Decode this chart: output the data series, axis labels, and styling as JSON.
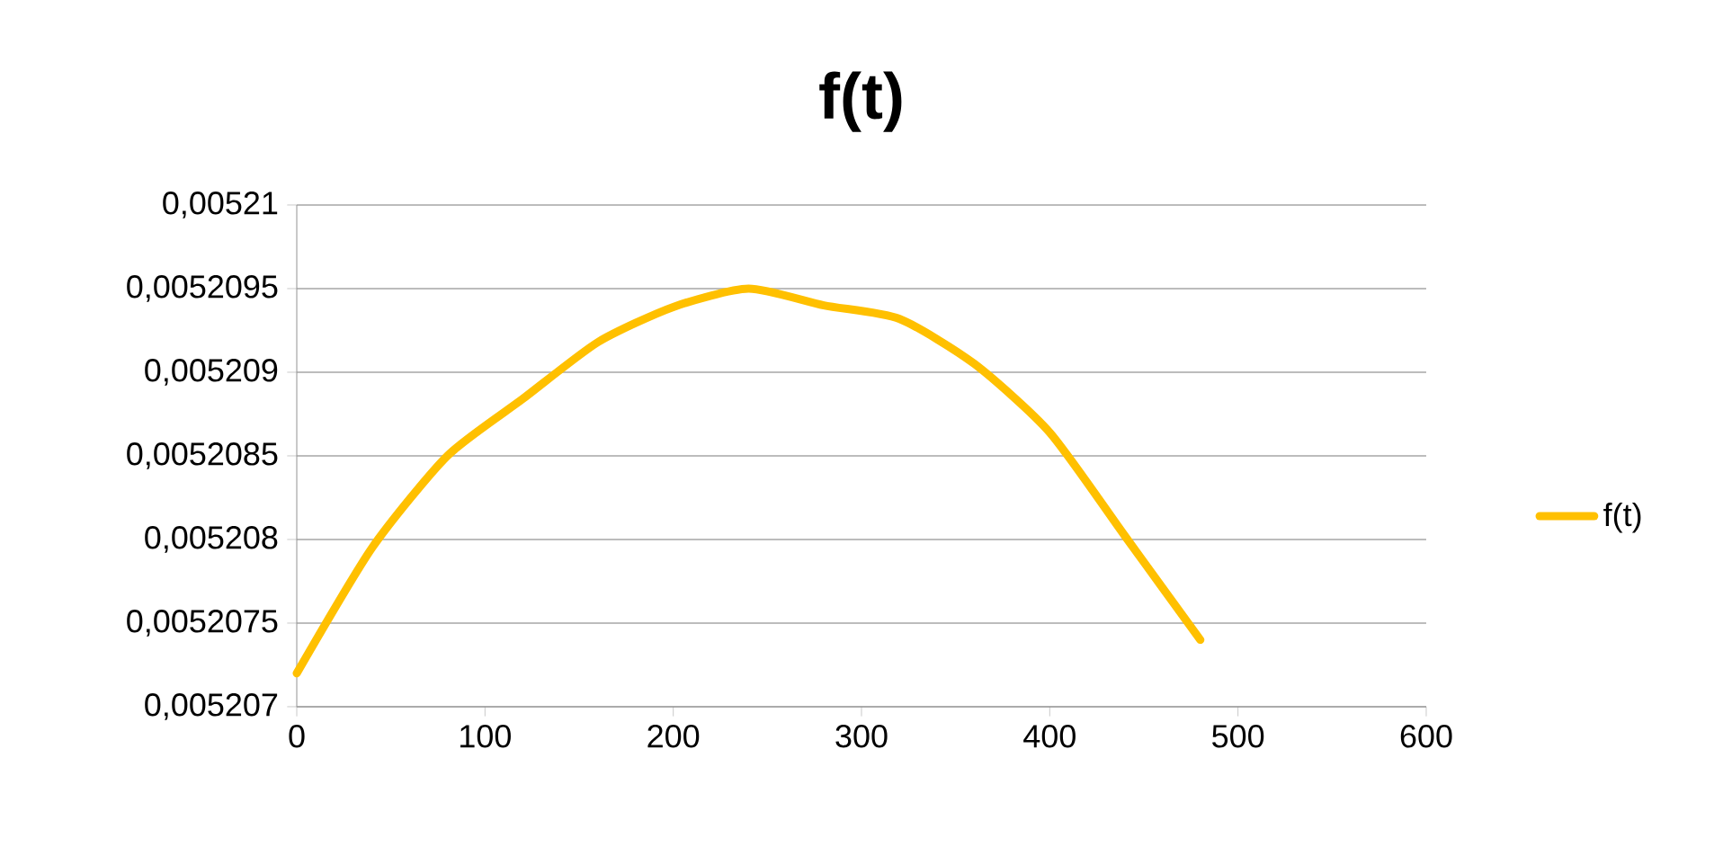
{
  "chart_data": {
    "type": "line",
    "title": "f(t)",
    "x": [
      0,
      40,
      80,
      120,
      160,
      200,
      240,
      280,
      320,
      360,
      400,
      440,
      480
    ],
    "series": [
      {
        "name": "f(t)",
        "color": "#ffc000",
        "values": [
          0.0052072,
          0.00520795,
          0.0052085,
          0.00520884,
          0.00520918,
          0.00520939,
          0.0052095,
          0.0052094,
          0.00520932,
          0.00520905,
          0.00520864,
          0.00520802,
          0.0052074
        ]
      }
    ],
    "xlim": [
      0,
      600
    ],
    "xticks": [
      0,
      100,
      200,
      300,
      400,
      500,
      600
    ],
    "ylim": [
      0.005207,
      0.00521
    ],
    "yticks": [
      {
        "value": 0.005207,
        "label": "0,005207"
      },
      {
        "value": 0.0052075,
        "label": "0,0052075"
      },
      {
        "value": 0.005208,
        "label": "0,005208"
      },
      {
        "value": 0.0052085,
        "label": "0,0052085"
      },
      {
        "value": 0.005209,
        "label": "0,005209"
      },
      {
        "value": 0.0052095,
        "label": "0,0052095"
      },
      {
        "value": 0.00521,
        "label": "0,00521"
      }
    ],
    "grid": "y",
    "legend": "right",
    "marker": "none",
    "line_style": "solid"
  }
}
